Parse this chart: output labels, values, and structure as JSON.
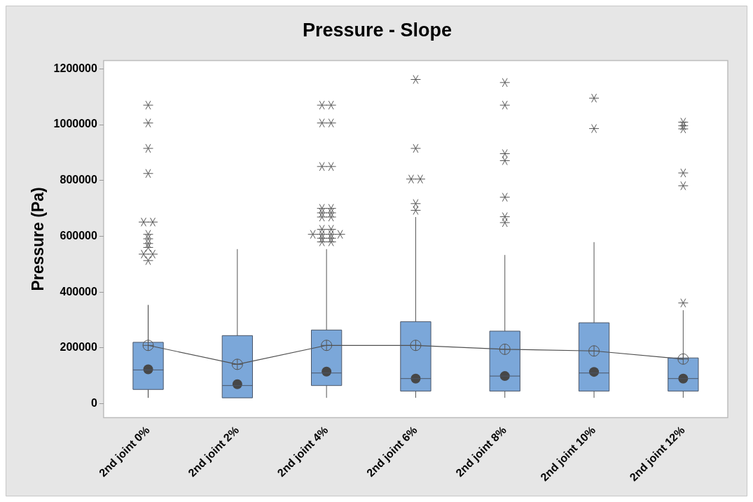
{
  "chart_data": {
    "type": "box",
    "title": "Pressure - Slope",
    "ylabel": "Pressure (Pa)",
    "categories": [
      "2nd joint 0%",
      "2nd joint 2%",
      "2nd joint 4%",
      "2nd joint 6%",
      "2nd joint 8%",
      "2nd joint 10%",
      "2nd joint 12%"
    ],
    "ylim": [
      -50000,
      1230000
    ],
    "yticks": [
      0,
      200000,
      400000,
      600000,
      800000,
      1000000,
      1200000
    ],
    "grid": false,
    "color": "#7ba7d9",
    "boxes": [
      {
        "low": 21000,
        "q1": 51000,
        "median": 121000,
        "q3": 220000,
        "high": 354000,
        "mean": 209000,
        "outliers": [
          1070000,
          1006000,
          915000,
          825000,
          651000,
          651000,
          607000,
          591000,
          574000,
          560000,
          536000,
          536000,
          513000
        ]
      },
      {
        "low": 21000,
        "q1": 21000,
        "median": 65000,
        "q3": 244000,
        "high": 554000,
        "mean": 141000
      },
      {
        "low": 21000,
        "q1": 65000,
        "median": 110000,
        "q3": 264000,
        "high": 554000,
        "mean": 209000,
        "outliers": [
          1070000,
          1070000,
          1006000,
          1006000,
          850000,
          850000,
          700000,
          700000,
          684000,
          684000,
          669000,
          669000,
          625000,
          625000,
          607000,
          607000,
          607000,
          607000,
          593000,
          593000,
          580000,
          580000
        ]
      },
      {
        "low": 21000,
        "q1": 45000,
        "median": 90000,
        "q3": 294000,
        "high": 669000,
        "mean": 209000,
        "outliers": [
          1162000,
          915000,
          805000,
          805000,
          717000,
          693000
        ]
      },
      {
        "low": 21000,
        "q1": 45000,
        "median": 99000,
        "q3": 260000,
        "high": 533000,
        "mean": 195000,
        "outliers": [
          1151000,
          1070000,
          896000,
          871000,
          740000,
          670000,
          649000
        ]
      },
      {
        "low": 21000,
        "q1": 45000,
        "median": 110000,
        "q3": 290000,
        "high": 579000,
        "mean": 189000,
        "outliers": [
          1095000,
          986000
        ]
      },
      {
        "low": 21000,
        "q1": 45000,
        "median": 90000,
        "q3": 164000,
        "high": 335000,
        "mean": 160000,
        "outliers": [
          1009000,
          996000,
          985000,
          827000,
          781000,
          361000
        ]
      }
    ],
    "series": [
      {
        "type": "line",
        "color": "#505050",
        "marker": "none",
        "values": [
          209000,
          141000,
          209000,
          209000,
          195000,
          189000,
          160000
        ]
      },
      {
        "type": "scatter",
        "color": "#474747",
        "marker": "circle",
        "values": [
          123000,
          70000,
          115000,
          90000,
          99000,
          114000,
          90000
        ]
      }
    ]
  }
}
